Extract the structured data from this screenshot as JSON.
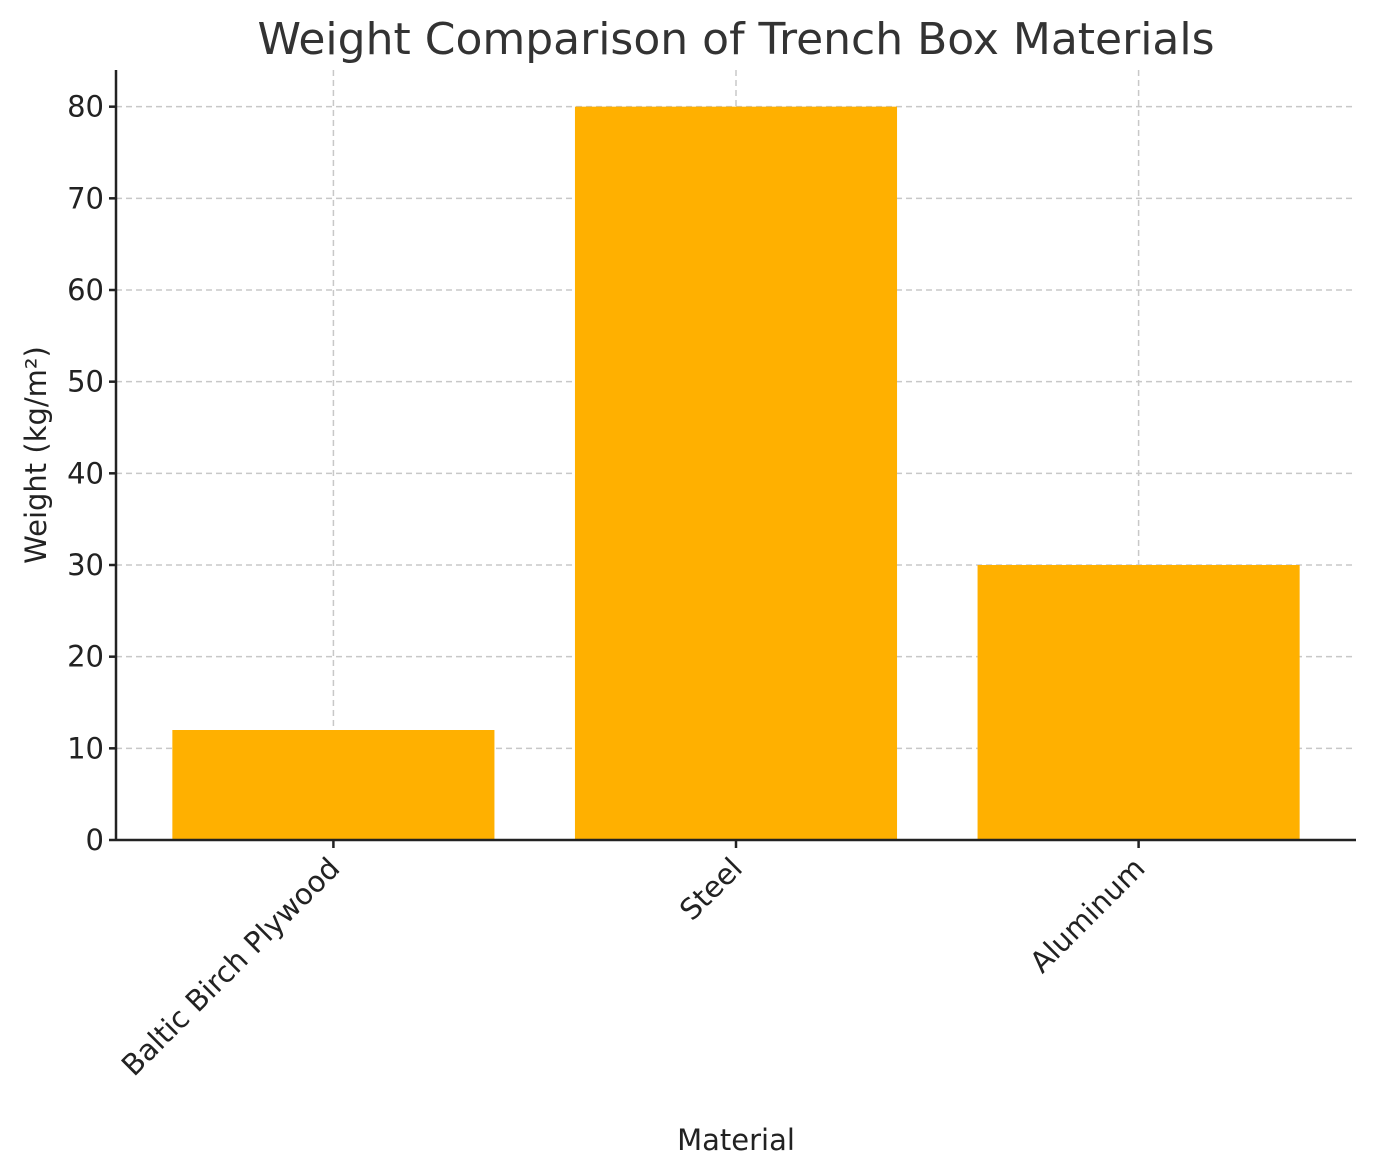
{
  "chart_data": {
    "type": "bar",
    "title": "Weight Comparison of Trench Box Materials",
    "xlabel": "Material",
    "ylabel": "Weight (kg/m²)",
    "categories": [
      "Baltic Birch Plywood",
      "Steel",
      "Aluminum"
    ],
    "values": [
      12,
      80,
      30
    ],
    "color": "#ffb000",
    "ylim": [
      0,
      84
    ],
    "yticks": [
      0,
      10,
      20,
      30,
      40,
      50,
      60,
      70,
      80
    ],
    "grid": true
  }
}
